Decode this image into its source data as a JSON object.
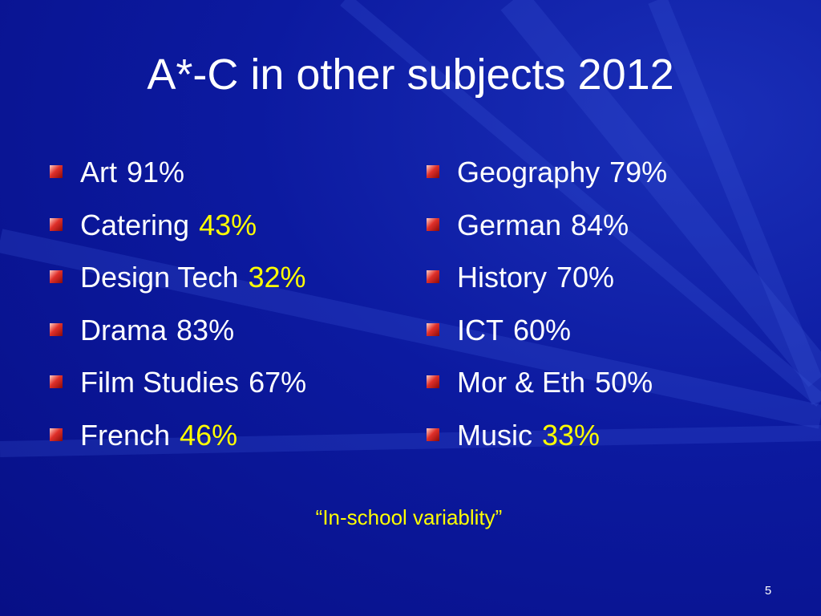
{
  "title": "A*-C in other subjects 2012",
  "highlight_color": "#ffff00",
  "columns": [
    {
      "items": [
        {
          "subject": "Art",
          "score": "91%",
          "highlight": false
        },
        {
          "subject": "Catering",
          "score": "43%",
          "highlight": true
        },
        {
          "subject": "Design Tech",
          "score": "32%",
          "highlight": true
        },
        {
          "subject": "Drama",
          "score": "83%",
          "highlight": false
        },
        {
          "subject": "Film Studies",
          "score": "67%",
          "highlight": false
        },
        {
          "subject": "French",
          "score": "46%",
          "highlight": true
        }
      ]
    },
    {
      "items": [
        {
          "subject": "Geography",
          "score": "79%",
          "highlight": false
        },
        {
          "subject": "German",
          "score": "84%",
          "highlight": false
        },
        {
          "subject": "History",
          "score": "70%",
          "highlight": false
        },
        {
          "subject": "ICT",
          "score": "60%",
          "highlight": false
        },
        {
          "subject": "Mor & Eth",
          "score": "50%",
          "highlight": false
        },
        {
          "subject": "Music",
          "score": "33%",
          "highlight": true
        }
      ]
    }
  ],
  "note": "“In-school variablity”",
  "page_number": "5"
}
